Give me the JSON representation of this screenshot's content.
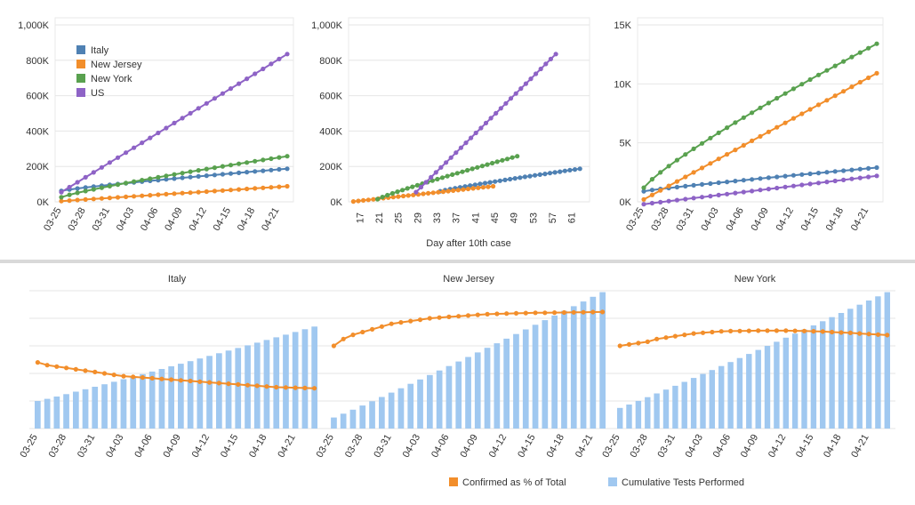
{
  "colors": {
    "italy": "#4f81b3",
    "new_jersey": "#f28e2b",
    "new_york": "#59a14f",
    "us": "#8e63c6",
    "confirmed_pct": "#f28e2b",
    "tests": "#a0c8f0"
  },
  "chart_data": [
    {
      "type": "line",
      "title": "",
      "ylabel": "",
      "xlabel": "",
      "ylim": [
        0,
        1000
      ],
      "y_ticks": [
        0,
        200,
        400,
        600,
        800,
        1000
      ],
      "y_tick_labels": [
        "0K",
        "200K",
        "400K",
        "600K",
        "800K",
        "1,000K"
      ],
      "x_tick_labels": [
        "03-25",
        "03-28",
        "03-31",
        "04-03",
        "04-06",
        "04-09",
        "04-12",
        "04-15",
        "04-18",
        "04-21"
      ],
      "legend": {
        "position": "top-left",
        "entries": [
          "Italy",
          "New Jersey",
          "New York",
          "US"
        ]
      },
      "series": [
        {
          "name": "Italy",
          "color_key": "italy",
          "start": 0,
          "end": 28,
          "v_start": 62,
          "v_end": 187,
          "curve": 0.85
        },
        {
          "name": "New Jersey",
          "color_key": "new_jersey",
          "start": 0,
          "end": 28,
          "v_start": 4,
          "v_end": 88,
          "curve": 1.0
        },
        {
          "name": "New York",
          "color_key": "new_york",
          "start": 0,
          "end": 28,
          "v_start": 26,
          "v_end": 258,
          "curve": 0.85
        },
        {
          "name": "US",
          "color_key": "us",
          "start": 0,
          "end": 28,
          "v_start": 55,
          "v_end": 835,
          "curve": 1.0
        }
      ]
    },
    {
      "type": "line",
      "title": "",
      "xlabel": "Day after 10th case",
      "ylabel": "",
      "ylim": [
        0,
        1000
      ],
      "xlim": [
        14,
        64
      ],
      "y_ticks": [
        0,
        200,
        400,
        600,
        800,
        1000
      ],
      "y_tick_labels": [
        "0K",
        "200K",
        "400K",
        "600K",
        "800K",
        "1,000K"
      ],
      "x_ticks": [
        17,
        21,
        25,
        29,
        33,
        37,
        41,
        45,
        49,
        53,
        57,
        61
      ],
      "x_tick_labels": [
        "17",
        "21",
        "25",
        "29",
        "33",
        "37",
        "41",
        "45",
        "49",
        "53",
        "57",
        "61"
      ],
      "series": [
        {
          "name": "Italy",
          "color_key": "italy",
          "start": 33,
          "end": 62,
          "v_start": 60,
          "v_end": 187,
          "curve": 0.9
        },
        {
          "name": "New Jersey",
          "color_key": "new_jersey",
          "start": 15,
          "end": 44,
          "v_start": 2,
          "v_end": 88,
          "curve": 1.0
        },
        {
          "name": "New York",
          "color_key": "new_york",
          "start": 20,
          "end": 49,
          "v_start": 15,
          "v_end": 258,
          "curve": 0.9
        },
        {
          "name": "US",
          "color_key": "us",
          "start": 28,
          "end": 57,
          "v_start": 55,
          "v_end": 835,
          "curve": 1.0
        }
      ]
    },
    {
      "type": "line",
      "title": "",
      "xlabel": "",
      "ylabel": "",
      "ylim": [
        0,
        15
      ],
      "y_ticks": [
        0,
        5,
        10,
        15
      ],
      "y_tick_labels": [
        "0K",
        "5K",
        "10K",
        "15K"
      ],
      "x_tick_labels": [
        "03-25",
        "03-28",
        "03-31",
        "04-03",
        "04-06",
        "04-09",
        "04-12",
        "04-15",
        "04-18",
        "04-21"
      ],
      "series": [
        {
          "name": "Italy",
          "color_key": "italy",
          "start": 0,
          "end": 28,
          "v_start": 0.9,
          "v_end": 2.9,
          "curve": 0.9
        },
        {
          "name": "New Jersey",
          "color_key": "new_jersey",
          "start": 0,
          "end": 28,
          "v_start": 0.2,
          "v_end": 10.9,
          "curve": 1.0
        },
        {
          "name": "New York",
          "color_key": "new_york",
          "start": 0,
          "end": 28,
          "v_start": 1.2,
          "v_end": 13.4,
          "curve": 0.85
        },
        {
          "name": "US",
          "color_key": "us",
          "start": 0,
          "end": 28,
          "v_start": -0.2,
          "v_end": 2.2,
          "curve": 1.0
        }
      ]
    },
    {
      "type": "bar",
      "title": "Italy",
      "xlabel": "",
      "ylabel": "",
      "x_tick_labels": [
        "03-25",
        "03-28",
        "03-31",
        "04-03",
        "04-06",
        "04-09",
        "04-12",
        "04-15",
        "04-18",
        "04-21"
      ],
      "series": [
        {
          "name": "Cumulative Tests Performed",
          "color_key": "tests",
          "bar_start": 0.2,
          "bar_end": 0.74,
          "pct_curve": [
            0.48,
            0.46,
            0.45,
            0.44,
            0.43,
            0.42,
            0.41,
            0.4,
            0.39,
            0.38,
            0.375,
            0.37,
            0.365,
            0.36,
            0.355,
            0.35,
            0.345,
            0.34,
            0.335,
            0.33,
            0.325,
            0.32,
            0.315,
            0.31,
            0.305,
            0.3,
            0.298,
            0.296,
            0.294,
            0.292
          ]
        },
        {
          "name": "Confirmed as % of Total",
          "color_key": "confirmed_pct"
        }
      ]
    },
    {
      "type": "bar",
      "title": "New Jersey",
      "xlabel": "",
      "ylabel": "",
      "x_tick_labels": [
        "03-25",
        "03-28",
        "03-31",
        "04-03",
        "04-06",
        "04-09",
        "04-12",
        "04-15",
        "04-18",
        "04-21"
      ],
      "series": [
        {
          "name": "Cumulative Tests Performed",
          "color_key": "tests",
          "bar_start": 0.08,
          "bar_end": 0.99,
          "pct_curve": [
            0.6,
            0.65,
            0.68,
            0.7,
            0.72,
            0.74,
            0.76,
            0.77,
            0.78,
            0.79,
            0.8,
            0.805,
            0.81,
            0.815,
            0.82,
            0.825,
            0.83,
            0.832,
            0.834,
            0.836,
            0.838,
            0.84,
            0.84,
            0.841,
            0.842,
            0.843,
            0.844,
            0.845,
            0.846
          ]
        },
        {
          "name": "Confirmed as % of Total",
          "color_key": "confirmed_pct"
        }
      ]
    },
    {
      "type": "bar",
      "title": "New York",
      "xlabel": "",
      "ylabel": "",
      "x_tick_labels": [
        "03-25",
        "03-28",
        "03-31",
        "04-03",
        "04-06",
        "04-09",
        "04-12",
        "04-15",
        "04-18",
        "04-21"
      ],
      "series": [
        {
          "name": "Cumulative Tests Performed",
          "color_key": "tests",
          "bar_start": 0.15,
          "bar_end": 0.99,
          "pct_curve": [
            0.6,
            0.61,
            0.62,
            0.63,
            0.65,
            0.66,
            0.67,
            0.68,
            0.69,
            0.695,
            0.7,
            0.705,
            0.707,
            0.708,
            0.709,
            0.71,
            0.71,
            0.71,
            0.71,
            0.709,
            0.708,
            0.706,
            0.704,
            0.7,
            0.697,
            0.694,
            0.69,
            0.686,
            0.682,
            0.678
          ]
        },
        {
          "name": "Confirmed as % of Total",
          "color_key": "confirmed_pct"
        }
      ]
    }
  ],
  "bottom_legend": {
    "items": [
      {
        "label": "Confirmed as % of Total",
        "color_key": "confirmed_pct"
      },
      {
        "label": "Cumulative Tests Performed",
        "color_key": "tests"
      }
    ]
  }
}
